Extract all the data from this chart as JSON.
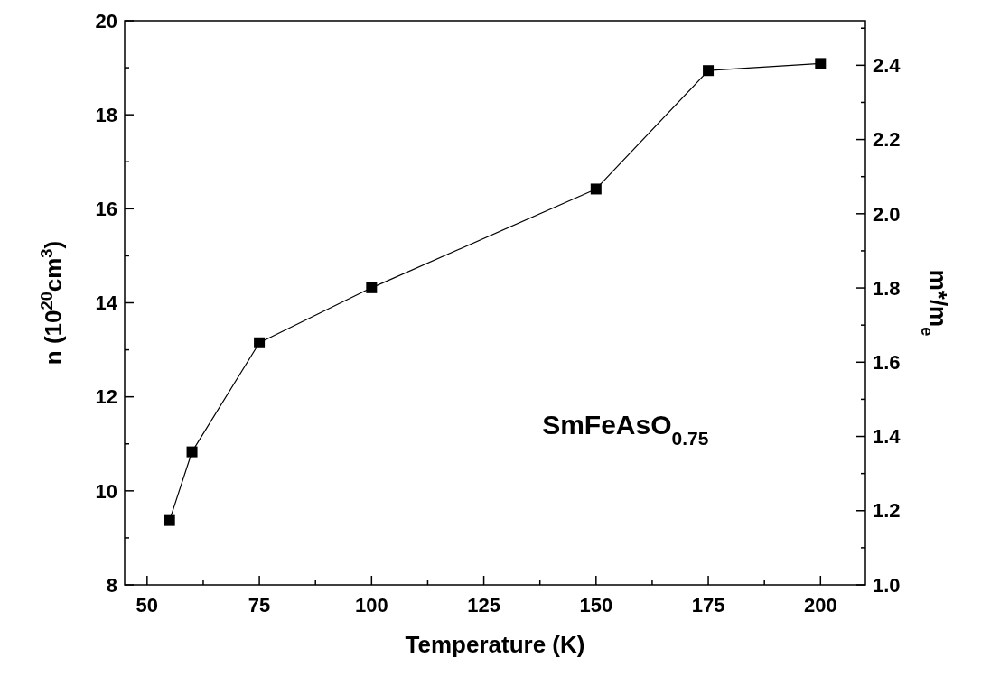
{
  "chart_data": {
    "type": "line",
    "xlabel": "Temperature (K)",
    "ylabel": "n (10$^{20}$cm$^{3}$)",
    "y2label": "m*/m$_{e}$",
    "x": [
      55,
      60,
      75,
      100,
      150,
      175,
      200
    ],
    "series": [
      {
        "color": "#000000",
        "values": [
          9.37,
          10.83,
          13.15,
          14.32,
          16.42,
          18.94,
          19.09
        ]
      }
    ],
    "xlim": [
      45,
      210
    ],
    "xticks": [
      50,
      {
        "value": 62.5,
        "label": null
      },
      75,
      {
        "value": 87.5,
        "label": null
      },
      100,
      {
        "value": 112.5,
        "label": null
      },
      125,
      {
        "value": 137.5,
        "label": null
      },
      150,
      {
        "value": 162.5,
        "label": null
      },
      175,
      {
        "value": 187.5,
        "label": null
      },
      200
    ],
    "ylim": [
      8,
      20
    ],
    "yticks": [
      8,
      {
        "value": 9,
        "label": null
      },
      10,
      {
        "value": 11,
        "label": null
      },
      12,
      {
        "value": 13,
        "label": null
      },
      14,
      {
        "value": 15,
        "label": null
      },
      16,
      {
        "value": 17,
        "label": null
      },
      18,
      {
        "value": 19,
        "label": null
      },
      20
    ],
    "y2lim": [
      1,
      2.52
    ],
    "y2ticks": [
      {
        "value": 1,
        "label": "1.0"
      },
      {
        "value": 1.1,
        "label": null
      },
      {
        "value": 1.2,
        "label": "1.2"
      },
      {
        "value": 1.3,
        "label": null
      },
      {
        "value": 1.4,
        "label": "1.4"
      },
      {
        "value": 1.5,
        "label": null
      },
      {
        "value": 1.6,
        "label": "1.6"
      },
      {
        "value": 1.7,
        "label": null
      },
      {
        "value": 1.8,
        "label": "1.8"
      },
      {
        "value": 1.9,
        "label": null
      },
      {
        "value": 2,
        "label": "2.0"
      },
      {
        "value": 2.1,
        "label": null
      },
      {
        "value": 2.2,
        "label": "2.2"
      },
      {
        "value": 2.3,
        "label": null
      },
      {
        "value": 2.4,
        "label": "2.4"
      },
      {
        "value": 2.5,
        "label": null
      }
    ],
    "annotations": [
      "SmFeAsO$_{0.75}$"
    ],
    "marker": "square",
    "line_style": "solid"
  }
}
